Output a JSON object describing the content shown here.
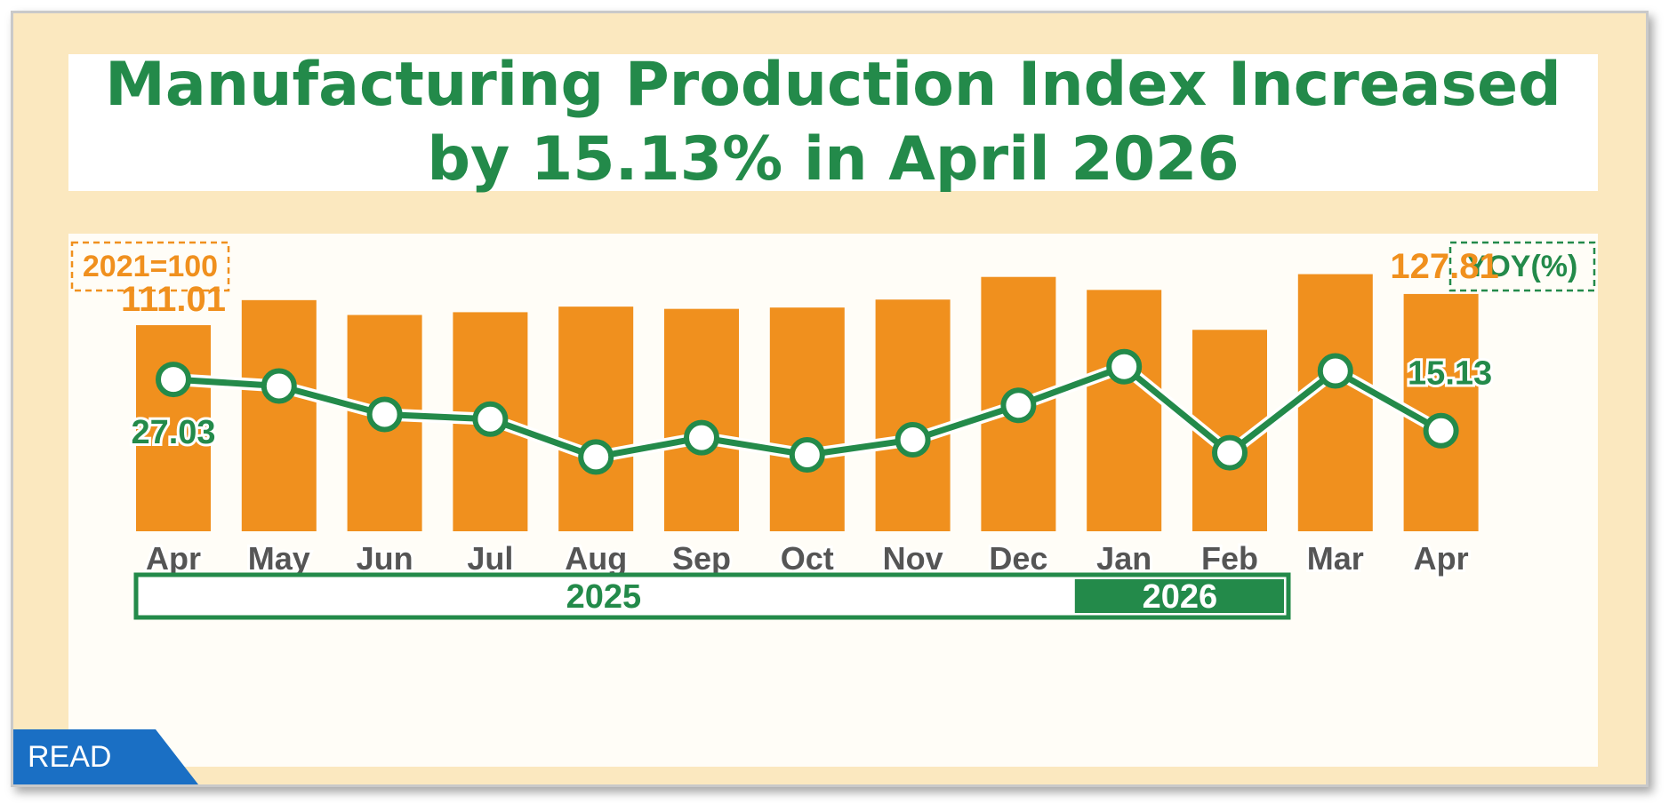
{
  "chart_data": {
    "type": "bar",
    "title_line1": "Manufacturing Production Index Increased",
    "title_line2": "by 15.13% in April 2026",
    "base_label": "2021=100",
    "yoy_label": "YOY(%)",
    "categories": [
      "Apr",
      "May",
      "Jun",
      "Jul",
      "Aug",
      "Sep",
      "Oct",
      "Nov",
      "Dec",
      "Jan",
      "Feb",
      "Mar",
      "Apr"
    ],
    "series": [
      {
        "values": [
          111.01,
          124.5,
          116.5,
          118.0,
          121.0,
          119.8,
          120.5,
          124.8,
          137.0,
          130.0,
          108.5,
          138.5,
          127.81
        ]
      },
      {
        "values": [
          27.03,
          25.5,
          18.9,
          17.8,
          9.0,
          13.5,
          9.5,
          13.0,
          21.0,
          30.0,
          10.0,
          29.0,
          15.13
        ]
      }
    ],
    "labeled_points": {
      "bar_first": "111.01",
      "bar_last": "127.81",
      "line_first": "27.03",
      "line_last": "15.13"
    },
    "years": [
      {
        "label": "2025",
        "span": [
          0,
          8
        ]
      },
      {
        "label": "2026",
        "span": [
          9,
          12
        ]
      }
    ],
    "ylim_bars": [
      0,
      145
    ],
    "ylim_line": [
      0,
      40
    ],
    "colors": {
      "bar": "#f0901e",
      "line": "#238a4a",
      "accent_text": "#f0901e",
      "year_box": "#238a4a"
    }
  },
  "badge": {
    "read": "READ"
  }
}
